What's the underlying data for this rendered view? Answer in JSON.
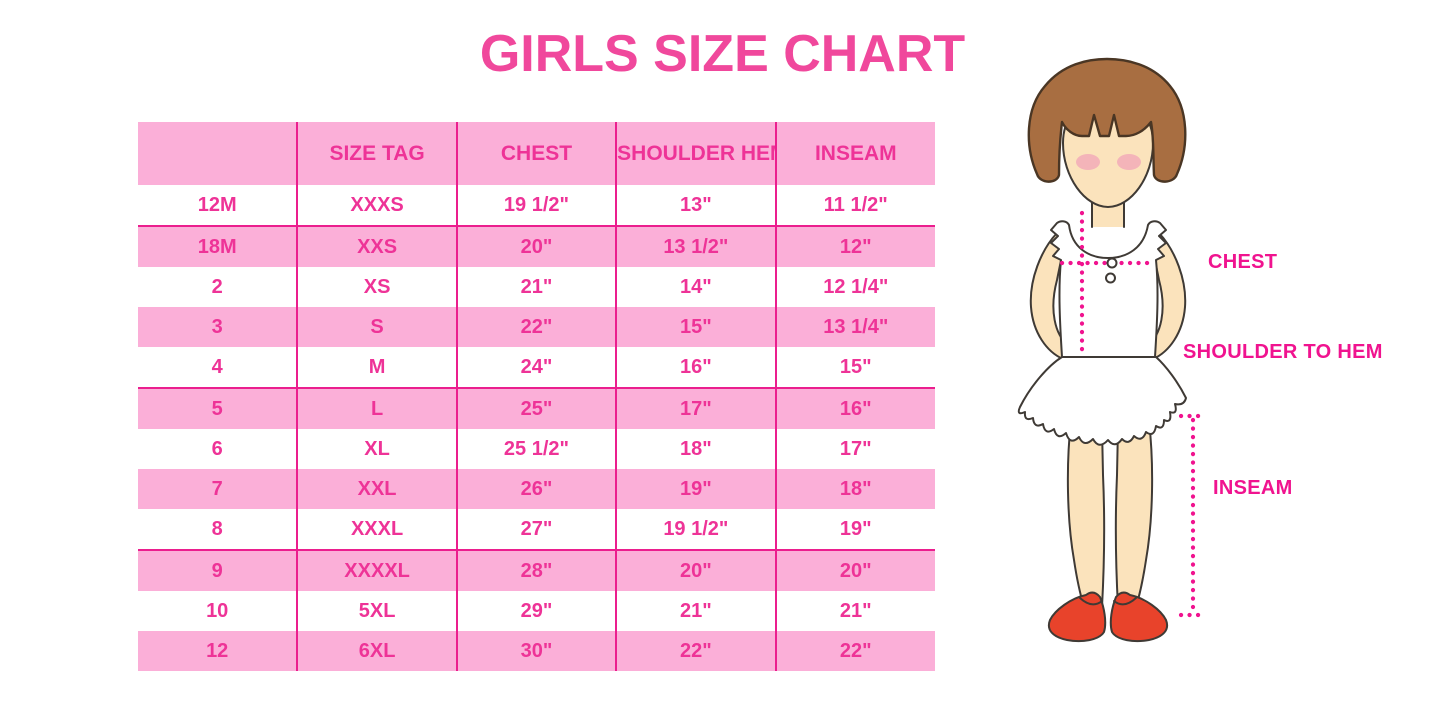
{
  "page_title": "GIRLS SIZE CHART",
  "chart_data": {
    "type": "table",
    "title": "GIRLS SIZE CHART",
    "columns": [
      "",
      "SIZE TAG",
      "CHEST",
      "SHOULDER HEM",
      "INSEAM"
    ],
    "rows": [
      [
        "12M",
        "XXXS",
        "19 1/2\"",
        "13\"",
        "11 1/2\""
      ],
      [
        "18M",
        "XXS",
        "20\"",
        "13 1/2\"",
        "12\""
      ],
      [
        "2",
        "XS",
        "21\"",
        "14\"",
        "12 1/4\""
      ],
      [
        "3",
        "S",
        "22\"",
        "15\"",
        "13 1/4\""
      ],
      [
        "4",
        "M",
        "24\"",
        "16\"",
        "15\""
      ],
      [
        "5",
        "L",
        "25\"",
        "17\"",
        "16\""
      ],
      [
        "6",
        "XL",
        "25 1/2\"",
        "18\"",
        "17\""
      ],
      [
        "7",
        "XXL",
        "26\"",
        "19\"",
        "18\""
      ],
      [
        "8",
        "XXXL",
        "27\"",
        "19 1/2\"",
        "19\""
      ],
      [
        "9",
        "XXXXL",
        "28\"",
        "20\"",
        "20\""
      ],
      [
        "10",
        "5XL",
        "29\"",
        "21\"",
        "21\""
      ],
      [
        "12",
        "6XL",
        "30\"",
        "22\"",
        "22\""
      ]
    ],
    "layout_hints": {
      "row_striping": "header pink, body alternates white/pink",
      "legend_position": "none",
      "grid": "vertical magenta separators; horizontal magenta rules above rows 18M, 5, 9"
    }
  },
  "figure": {
    "description": "cartoon girl with brown bob hair, white ruffled top, red mary-jane shoes, dotted magenta measurement guides",
    "labels": {
      "chest": "CHEST",
      "shoulder_to_hem": "SHOULDER TO HEM",
      "inseam": "INSEAM"
    }
  },
  "colors": {
    "title_pink": "#F0489C",
    "table_text": "#EE3397",
    "row_pink": "#FBAFD8",
    "grid_line": "#EB1E8E",
    "label_magenta": "#F0138F",
    "hair_brown": "#A86E41",
    "skin": "#FBE3BC",
    "blush": "#F2ACB9",
    "shoe_red": "#E8432B"
  }
}
